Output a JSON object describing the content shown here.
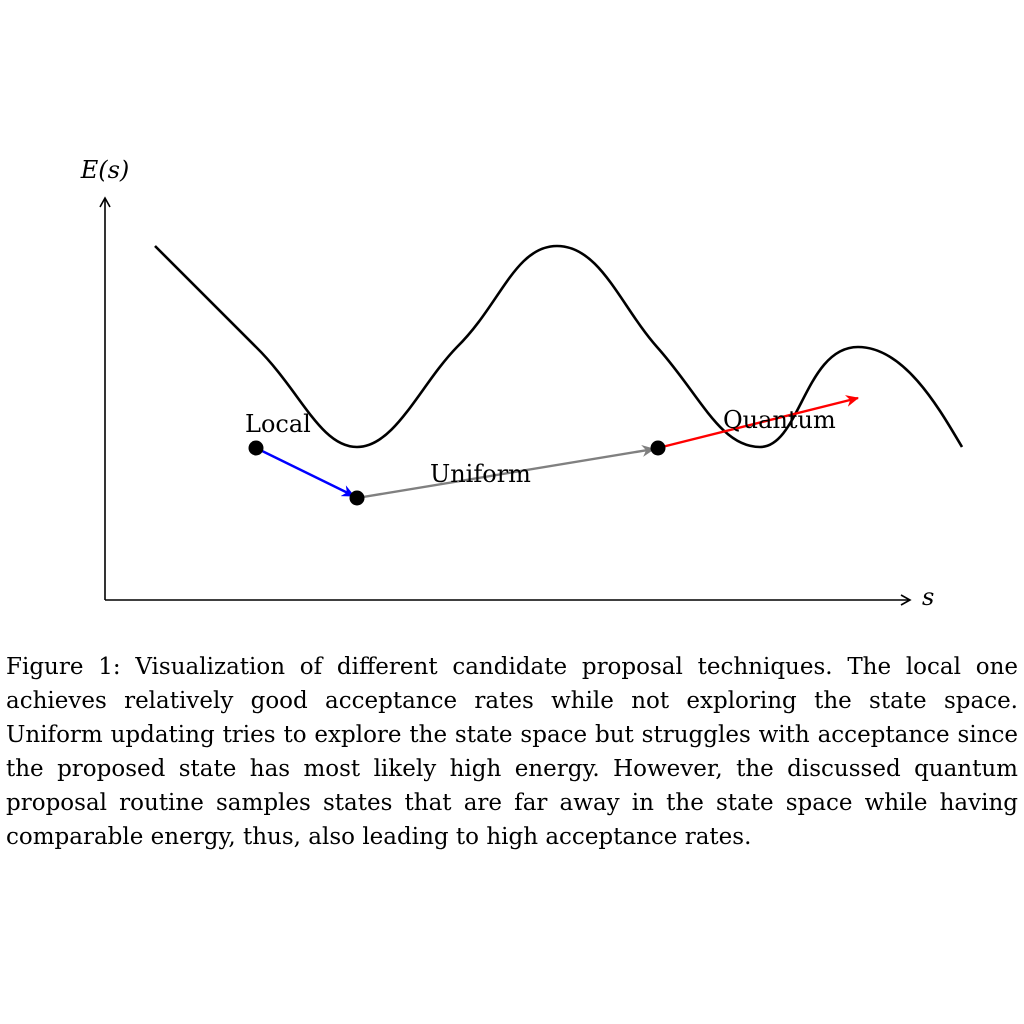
{
  "diagram": {
    "y_axis_label": "E(s)",
    "x_axis_label": "s",
    "labels": {
      "local": "Local",
      "uniform": "Uniform",
      "quantum": "Quantum"
    },
    "colors": {
      "axis": "#000000",
      "curve": "#000000",
      "local_arrow": "#0000ff",
      "uniform_arrow": "#808080",
      "quantum_arrow": "#ff0000",
      "points": "#000000"
    }
  },
  "caption": {
    "label": "Figure 1:",
    "text": "Visualization of different candidate proposal techniques. The local one achieves relatively good acceptance rates while not exploring the state space. Uniform updating tries to explore the state space but struggles with acceptance since the proposed state has most likely high energy. However, the discussed quantum proposal routine samples states that are far away in the state space while having comparable energy, thus, also leading to high acceptance rates."
  }
}
